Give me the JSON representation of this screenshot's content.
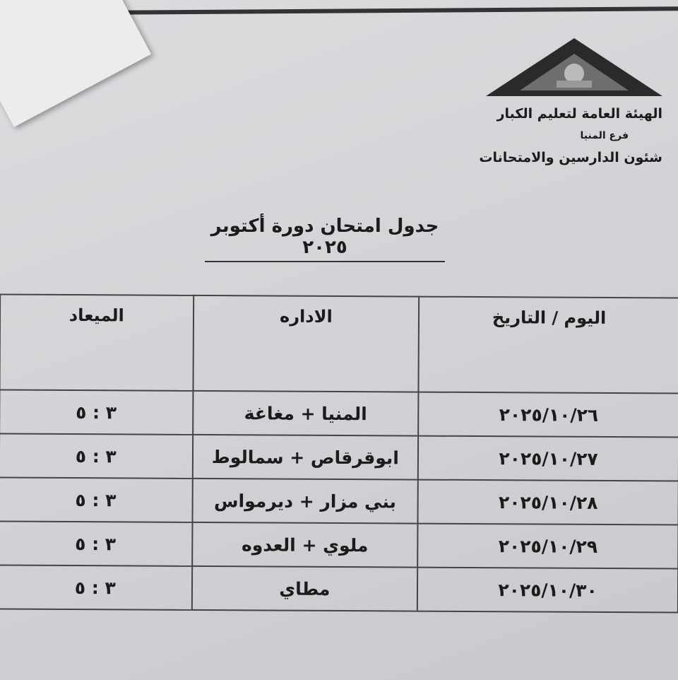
{
  "header": {
    "org_name": "الهيئة العامة لتعليم الكبار",
    "branch": "فرع المنيا",
    "department": "شئون الدارسين والامتحانات"
  },
  "title": "جدول امتحان دورة أكتوبر ٢٠٢٥",
  "table": {
    "columns": [
      "اليوم / التاريخ",
      "الاداره",
      "الميعاد"
    ],
    "rows": [
      {
        "date": "٢٠٢٥/١٠/٢٦",
        "admin": "المنيا + مغاغة",
        "time": "٣ : ٥"
      },
      {
        "date": "٢٠٢٥/١٠/٢٧",
        "admin": "ابوقرقاص + سمالوط",
        "time": "٣ : ٥"
      },
      {
        "date": "٢٠٢٥/١٠/٢٨",
        "admin": "بني مزار + ديرمواس",
        "time": "٣ : ٥"
      },
      {
        "date": "٢٠٢٥/١٠/٢٩",
        "admin": "ملوي + العدوه",
        "time": "٣ : ٥"
      },
      {
        "date": "٢٠٢٥/١٠/٣٠",
        "admin": "مطاي",
        "time": "٣ : ٥"
      }
    ]
  }
}
